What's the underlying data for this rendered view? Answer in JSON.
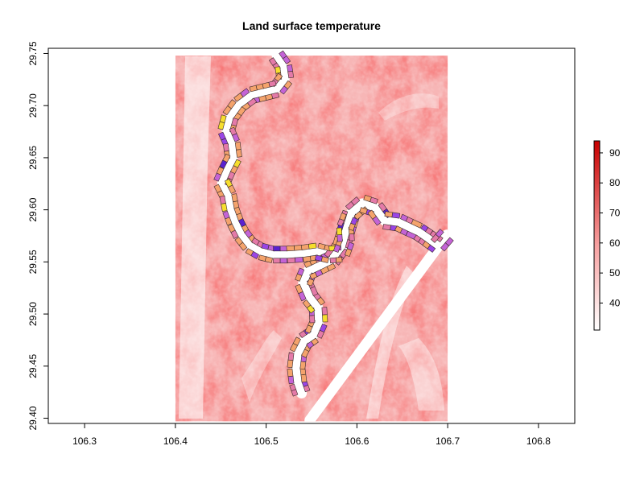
{
  "title": "Land surface temperature",
  "chart_data": {
    "type": "heatmap",
    "title": "Land surface temperature",
    "xlabel": "",
    "ylabel": "",
    "xlim": [
      106.26,
      106.84
    ],
    "ylim": [
      29.395,
      29.755
    ],
    "x_ticks": [
      "106.3",
      "106.4",
      "106.5",
      "106.6",
      "106.7",
      "106.8"
    ],
    "x_tick_values": [
      106.3,
      106.4,
      106.5,
      106.6,
      106.7,
      106.8
    ],
    "y_ticks": [
      "29.40",
      "29.45",
      "29.50",
      "29.55",
      "29.60",
      "29.65",
      "29.70",
      "29.75"
    ],
    "y_tick_values": [
      29.4,
      29.45,
      29.5,
      29.55,
      29.6,
      29.65,
      29.7,
      29.75
    ],
    "raster_extent": {
      "xmin": 106.4,
      "xmax": 106.7,
      "ymin": 29.397,
      "ymax": 29.748
    },
    "colorbar": {
      "ticks": [
        "40",
        "50",
        "60",
        "70",
        "80",
        "90"
      ],
      "tick_values": [
        40,
        50,
        60,
        70,
        80,
        90
      ],
      "range": [
        31,
        94
      ],
      "colors": [
        "#ffffff",
        "#f7a0a0",
        "#c80000"
      ],
      "placement": "right"
    },
    "river_path": [
      [
        106.539,
        29.424
      ],
      [
        106.535,
        29.434
      ],
      [
        106.533,
        29.448
      ],
      [
        106.535,
        29.462
      ],
      [
        106.542,
        29.474
      ],
      [
        106.552,
        29.48
      ],
      [
        106.558,
        29.492
      ],
      [
        106.557,
        29.506
      ],
      [
        106.548,
        29.516
      ],
      [
        106.541,
        29.53
      ],
      [
        106.546,
        29.541
      ],
      [
        106.558,
        29.546
      ],
      [
        106.572,
        29.552
      ],
      [
        106.583,
        29.565
      ],
      [
        106.588,
        29.58
      ],
      [
        106.594,
        29.597
      ],
      [
        106.606,
        29.606
      ],
      [
        106.62,
        29.602
      ],
      [
        106.63,
        29.59
      ],
      [
        106.646,
        29.588
      ],
      [
        106.658,
        29.583
      ],
      [
        106.668,
        29.579
      ],
      [
        106.678,
        29.573
      ],
      [
        106.689,
        29.566
      ],
      [
        106.699,
        29.576
      ]
    ],
    "river_path_upper": [
      [
        106.511,
        29.748
      ],
      [
        106.519,
        29.738
      ],
      [
        106.521,
        29.726
      ],
      [
        106.512,
        29.716
      ],
      [
        106.498,
        29.713
      ],
      [
        106.484,
        29.71
      ],
      [
        106.47,
        29.701
      ],
      [
        106.46,
        29.689
      ],
      [
        106.456,
        29.676
      ],
      [
        106.462,
        29.664
      ],
      [
        106.464,
        29.65
      ],
      [
        106.457,
        29.638
      ],
      [
        106.451,
        29.626
      ],
      [
        106.458,
        29.614
      ],
      [
        106.461,
        29.6
      ],
      [
        106.466,
        29.588
      ],
      [
        106.473,
        29.576
      ],
      [
        106.482,
        29.566
      ],
      [
        106.494,
        29.56
      ],
      [
        106.508,
        29.557
      ],
      [
        106.523,
        29.557
      ],
      [
        106.54,
        29.558
      ],
      [
        106.556,
        29.56
      ],
      [
        106.57,
        29.557
      ],
      [
        106.583,
        29.558
      ],
      [
        106.588,
        29.57
      ],
      [
        106.587,
        29.583
      ],
      [
        106.592,
        29.594
      ]
    ],
    "segment_palette": [
      "#f4a36c",
      "#e47aa8",
      "#c463d6",
      "#9a45e6",
      "#f6de2e",
      "#5a22d0"
    ]
  }
}
